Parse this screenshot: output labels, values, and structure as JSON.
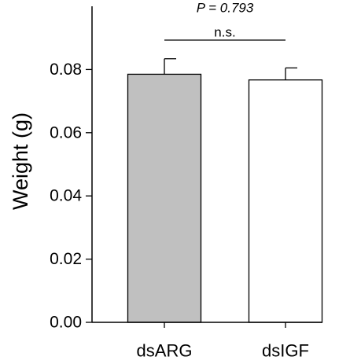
{
  "chart_data": {
    "type": "bar",
    "ylabel": "Weight (g)",
    "ylim": [
      0,
      0.1
    ],
    "yticks": [
      "0.00",
      "0.02",
      "0.04",
      "0.06",
      "0.08"
    ],
    "categories": [
      "dsARG",
      "dsIGF"
    ],
    "values": [
      0.0785,
      0.0767
    ],
    "errors": [
      0.0049,
      0.0038
    ],
    "bar_colors": [
      "#c0c0c0",
      "#ffffff"
    ],
    "significance": {
      "label": "n.s.",
      "p_value": "P = 0.793",
      "between": [
        0,
        1
      ]
    },
    "grid": false
  }
}
